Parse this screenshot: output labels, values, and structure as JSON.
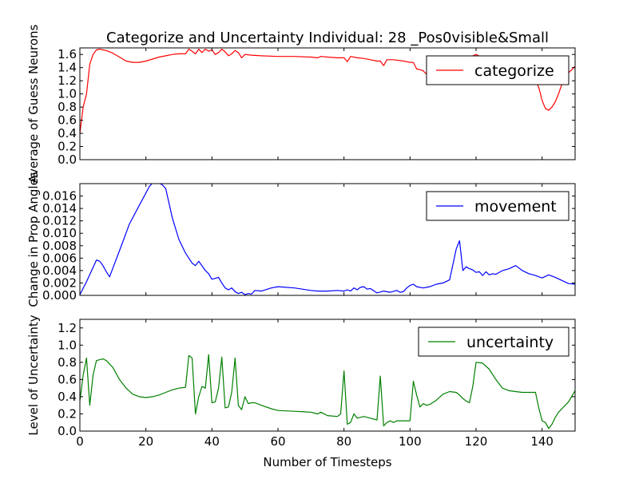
{
  "figure": {
    "title": "Categorize and Uncertainty Individual: 28 _Pos0visible&Small"
  },
  "chart_data": [
    {
      "type": "line",
      "xlabel": "",
      "ylabel": "Average of Guess Neurons",
      "xlim": [
        0,
        150
      ],
      "ylim": [
        0,
        1.7
      ],
      "xticks": [
        0,
        20,
        40,
        60,
        80,
        100,
        120,
        140
      ],
      "yticks": [
        0.0,
        0.2,
        0.4,
        0.6,
        0.8,
        1.0,
        1.2,
        1.4,
        1.6
      ],
      "ytick_labels": [
        "0.0",
        "0.2",
        "0.4",
        "0.6",
        "0.8",
        "1.0",
        "1.2",
        "1.4",
        "1.6"
      ],
      "show_xtick_labels": false,
      "grid": false,
      "legend_position": "upper-right",
      "series": [
        {
          "name": "categorize",
          "color": "#ff0000",
          "x": [
            0,
            1,
            2,
            3,
            4,
            5,
            6,
            7,
            8,
            10,
            12,
            14,
            16,
            18,
            20,
            22,
            24,
            26,
            28,
            30,
            32,
            33,
            34,
            35,
            36,
            37,
            38,
            39,
            40,
            41,
            42,
            43,
            44,
            45,
            46,
            47,
            48,
            49,
            50,
            52,
            55,
            60,
            65,
            70,
            72,
            73,
            75,
            78,
            80,
            81,
            82,
            84,
            86,
            88,
            90,
            91,
            92,
            93,
            95,
            98,
            100,
            101,
            102,
            103,
            104,
            105,
            107,
            110,
            112,
            114,
            116,
            118,
            119,
            120,
            122,
            124,
            126,
            128,
            130,
            132,
            134,
            136,
            138,
            139,
            140,
            141,
            142,
            143,
            144,
            145,
            146,
            148,
            150
          ],
          "values": [
            0.4,
            0.8,
            1.0,
            1.45,
            1.6,
            1.67,
            1.68,
            1.67,
            1.66,
            1.62,
            1.56,
            1.5,
            1.48,
            1.48,
            1.5,
            1.53,
            1.56,
            1.58,
            1.6,
            1.61,
            1.61,
            1.68,
            1.65,
            1.61,
            1.68,
            1.63,
            1.68,
            1.65,
            1.67,
            1.6,
            1.63,
            1.68,
            1.64,
            1.58,
            1.61,
            1.66,
            1.63,
            1.55,
            1.6,
            1.59,
            1.58,
            1.57,
            1.57,
            1.56,
            1.55,
            1.57,
            1.56,
            1.55,
            1.55,
            1.49,
            1.57,
            1.55,
            1.54,
            1.52,
            1.5,
            1.5,
            1.43,
            1.52,
            1.52,
            1.5,
            1.48,
            1.48,
            1.38,
            1.37,
            1.35,
            1.3,
            1.28,
            1.3,
            1.35,
            1.4,
            1.45,
            1.5,
            1.58,
            1.6,
            1.55,
            1.5,
            1.47,
            1.43,
            1.42,
            1.4,
            1.38,
            1.3,
            1.2,
            1.1,
            0.9,
            0.78,
            0.75,
            0.8,
            0.88,
            1.0,
            1.15,
            1.32,
            1.42
          ]
        }
      ]
    },
    {
      "type": "line",
      "xlabel": "",
      "ylabel": "Change in Prop Angles",
      "xlim": [
        0,
        150
      ],
      "ylim": [
        0,
        0.018
      ],
      "xticks": [
        0,
        20,
        40,
        60,
        80,
        100,
        120,
        140
      ],
      "yticks": [
        0.0,
        0.002,
        0.004,
        0.006,
        0.008,
        0.01,
        0.012,
        0.014,
        0.016
      ],
      "ytick_labels": [
        "0.000",
        "0.002",
        "0.004",
        "0.006",
        "0.008",
        "0.010",
        "0.012",
        "0.014",
        "0.016"
      ],
      "show_xtick_labels": false,
      "grid": false,
      "legend_position": "upper-right",
      "series": [
        {
          "name": "movement",
          "color": "#0000ff",
          "x": [
            0,
            2,
            4,
            5,
            6,
            7,
            8,
            9,
            12,
            15,
            18,
            20,
            21,
            22,
            24,
            25,
            26,
            28,
            30,
            32,
            34,
            35,
            36,
            38,
            39,
            40,
            42,
            43,
            44,
            45,
            46,
            47,
            48,
            49,
            50,
            51,
            52,
            53,
            55,
            58,
            60,
            65,
            70,
            72,
            73,
            75,
            78,
            80,
            81,
            82,
            83,
            84,
            85,
            86,
            87,
            88,
            90,
            92,
            94,
            96,
            97,
            98,
            99,
            100,
            101,
            102,
            104,
            106,
            108,
            110,
            112,
            114,
            115,
            116,
            117,
            118,
            119,
            120,
            121,
            122,
            123,
            124,
            125,
            126,
            128,
            130,
            132,
            134,
            136,
            138,
            139,
            140,
            142,
            144,
            146,
            148,
            150
          ],
          "values": [
            0.0001,
            0.0022,
            0.0045,
            0.0057,
            0.0055,
            0.0048,
            0.0038,
            0.003,
            0.0072,
            0.0115,
            0.0145,
            0.0165,
            0.0175,
            0.0181,
            0.0181,
            0.0178,
            0.0172,
            0.0125,
            0.009,
            0.0068,
            0.0052,
            0.0048,
            0.0055,
            0.004,
            0.0035,
            0.0026,
            0.0029,
            0.002,
            0.0012,
            0.0009,
            0.0012,
            0.0006,
            0.0003,
            0.0005,
            0.0001,
            0.0003,
            0.0002,
            0.0008,
            0.0007,
            0.0012,
            0.0014,
            0.0012,
            0.0008,
            0.0007,
            0.0007,
            0.0007,
            0.0008,
            0.0007,
            0.0009,
            0.0007,
            0.0012,
            0.0009,
            0.0013,
            0.0014,
            0.001,
            0.0011,
            0.0004,
            0.0007,
            0.0005,
            0.0008,
            0.0005,
            0.0006,
            0.0012,
            0.0016,
            0.0018,
            0.0014,
            0.0012,
            0.0014,
            0.0018,
            0.002,
            0.0025,
            0.0075,
            0.0088,
            0.004,
            0.0046,
            0.0043,
            0.0041,
            0.0037,
            0.0038,
            0.0032,
            0.0038,
            0.0033,
            0.0035,
            0.0034,
            0.004,
            0.0043,
            0.0048,
            0.004,
            0.0035,
            0.0032,
            0.003,
            0.0028,
            0.0033,
            0.0029,
            0.0024,
            0.0019,
            0.0018
          ]
        }
      ]
    },
    {
      "type": "line",
      "xlabel": "Number of Timesteps",
      "ylabel": "Level of Uncertainty",
      "xlim": [
        0,
        150
      ],
      "ylim": [
        0,
        1.3
      ],
      "xticks": [
        0,
        20,
        40,
        60,
        80,
        100,
        120,
        140
      ],
      "xtick_labels": [
        "0",
        "20",
        "40",
        "60",
        "80",
        "100",
        "120",
        "140"
      ],
      "yticks": [
        0.0,
        0.2,
        0.4,
        0.6,
        0.8,
        1.0,
        1.2
      ],
      "ytick_labels": [
        "0.0",
        "0.2",
        "0.4",
        "0.6",
        "0.8",
        "1.0",
        "1.2"
      ],
      "show_xtick_labels": true,
      "grid": false,
      "legend_position": "upper-right",
      "series": [
        {
          "name": "uncertainty",
          "color": "#008000",
          "x": [
            0,
            1,
            2,
            3,
            4,
            5,
            6,
            7,
            8,
            10,
            12,
            14,
            16,
            18,
            20,
            22,
            24,
            26,
            28,
            30,
            32,
            33,
            34,
            35,
            36,
            37,
            38,
            39,
            40,
            41,
            42,
            43,
            44,
            45,
            46,
            47,
            48,
            49,
            50,
            51,
            52,
            53,
            55,
            58,
            60,
            65,
            70,
            72,
            73,
            75,
            78,
            79,
            80,
            81,
            82,
            83,
            84,
            85,
            86,
            88,
            90,
            91,
            92,
            93,
            94,
            95,
            96,
            97,
            98,
            99,
            100,
            101,
            102,
            103,
            104,
            105,
            106,
            108,
            110,
            112,
            114,
            115,
            116,
            117,
            118,
            119,
            120,
            122,
            124,
            126,
            128,
            130,
            132,
            134,
            136,
            138,
            139,
            140,
            141,
            142,
            143,
            144,
            145,
            146,
            148,
            150
          ],
          "values": [
            0.35,
            0.65,
            0.85,
            0.3,
            0.65,
            0.82,
            0.83,
            0.84,
            0.82,
            0.74,
            0.6,
            0.5,
            0.43,
            0.4,
            0.39,
            0.4,
            0.42,
            0.45,
            0.48,
            0.5,
            0.51,
            0.88,
            0.85,
            0.2,
            0.4,
            0.52,
            0.5,
            0.89,
            0.33,
            0.34,
            0.5,
            0.86,
            0.27,
            0.28,
            0.45,
            0.85,
            0.3,
            0.25,
            0.4,
            0.32,
            0.33,
            0.33,
            0.3,
            0.26,
            0.24,
            0.23,
            0.22,
            0.2,
            0.22,
            0.18,
            0.17,
            0.2,
            0.7,
            0.08,
            0.1,
            0.2,
            0.15,
            0.16,
            0.17,
            0.15,
            0.13,
            0.64,
            0.06,
            0.1,
            0.12,
            0.1,
            0.12,
            0.12,
            0.12,
            0.12,
            0.12,
            0.58,
            0.42,
            0.28,
            0.32,
            0.3,
            0.31,
            0.36,
            0.43,
            0.46,
            0.45,
            0.42,
            0.38,
            0.35,
            0.33,
            0.52,
            0.8,
            0.79,
            0.72,
            0.6,
            0.5,
            0.47,
            0.46,
            0.45,
            0.45,
            0.45,
            0.27,
            0.12,
            0.1,
            0.03,
            0.08,
            0.16,
            0.22,
            0.26,
            0.34,
            0.47
          ]
        }
      ]
    }
  ]
}
